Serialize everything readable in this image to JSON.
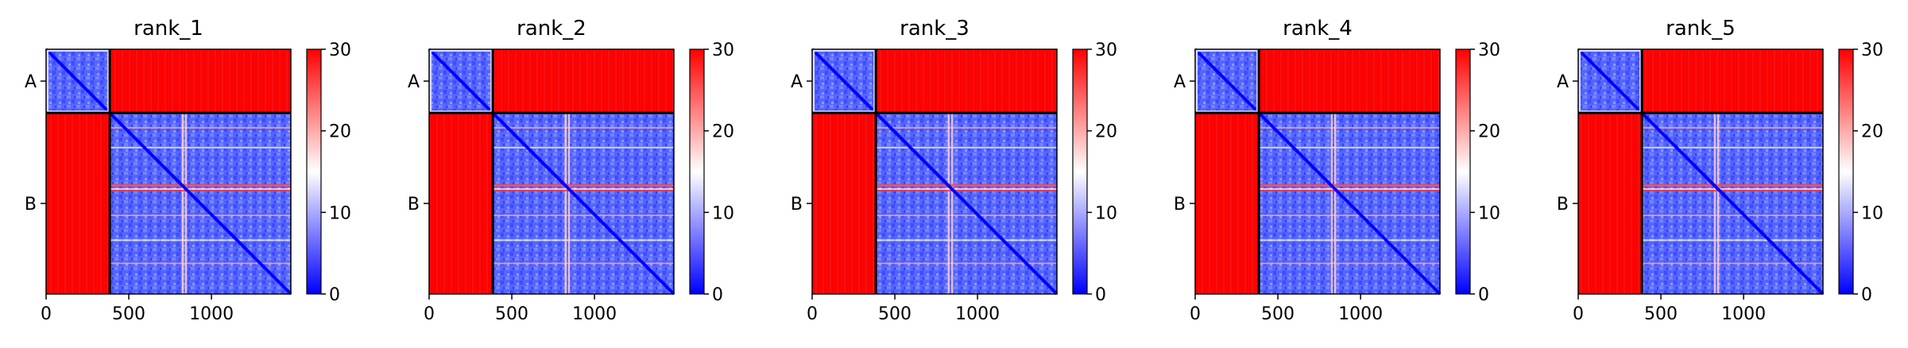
{
  "chart_data": [
    {
      "type": "heatmap",
      "title": "rank_1",
      "chain_labels": [
        "A",
        "B"
      ],
      "x_ticks": [
        0,
        500,
        1000
      ],
      "x_range": [
        0,
        1480
      ],
      "chain_boundary": 385,
      "cmap": [
        "#0000ff",
        "#ffffff",
        "#ff0000"
      ],
      "colorbar": {
        "min": 0,
        "max": 30,
        "ticks": [
          0,
          10,
          20,
          30
        ]
      }
    },
    {
      "type": "heatmap",
      "title": "rank_2",
      "chain_labels": [
        "A",
        "B"
      ],
      "x_ticks": [
        0,
        500,
        1000
      ],
      "x_range": [
        0,
        1480
      ],
      "chain_boundary": 385,
      "cmap": [
        "#0000ff",
        "#ffffff",
        "#ff0000"
      ],
      "colorbar": {
        "min": 0,
        "max": 30,
        "ticks": [
          0,
          10,
          20,
          30
        ]
      }
    },
    {
      "type": "heatmap",
      "title": "rank_3",
      "chain_labels": [
        "A",
        "B"
      ],
      "x_ticks": [
        0,
        500,
        1000
      ],
      "x_range": [
        0,
        1480
      ],
      "chain_boundary": 385,
      "cmap": [
        "#0000ff",
        "#ffffff",
        "#ff0000"
      ],
      "colorbar": {
        "min": 0,
        "max": 30,
        "ticks": [
          0,
          10,
          20,
          30
        ]
      }
    },
    {
      "type": "heatmap",
      "title": "rank_4",
      "chain_labels": [
        "A",
        "B"
      ],
      "x_ticks": [
        0,
        500,
        1000
      ],
      "x_range": [
        0,
        1480
      ],
      "chain_boundary": 385,
      "cmap": [
        "#0000ff",
        "#ffffff",
        "#ff0000"
      ],
      "colorbar": {
        "min": 0,
        "max": 30,
        "ticks": [
          0,
          10,
          20,
          30
        ]
      }
    },
    {
      "type": "heatmap",
      "title": "rank_5",
      "chain_labels": [
        "A",
        "B"
      ],
      "x_ticks": [
        0,
        500,
        1000
      ],
      "x_range": [
        0,
        1480
      ],
      "chain_boundary": 385,
      "cmap": [
        "#0000ff",
        "#ffffff",
        "#ff0000"
      ],
      "colorbar": {
        "min": 0,
        "max": 30,
        "ticks": [
          0,
          10,
          20,
          30
        ]
      }
    }
  ]
}
